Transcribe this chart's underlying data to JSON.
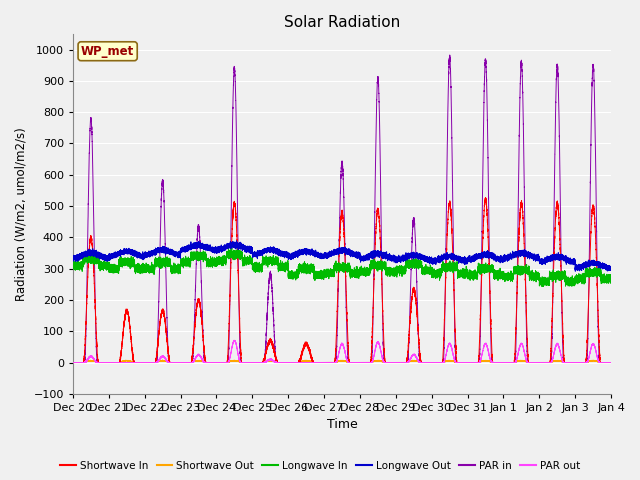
{
  "title": "Solar Radiation",
  "xlabel": "Time",
  "ylabel": "Radiation (W/m2, umol/m2/s)",
  "ylim": [
    -100,
    1050
  ],
  "yticks": [
    -100,
    0,
    100,
    200,
    300,
    400,
    500,
    600,
    700,
    800,
    900,
    1000
  ],
  "x_labels": [
    "Dec 20",
    "Dec 21",
    "Dec 22",
    "Dec 23",
    "Dec 24",
    "Dec 25",
    "Dec 26",
    "Dec 27",
    "Dec 28",
    "Dec 29",
    "Dec 30",
    "Dec 31",
    "Jan 1",
    "Jan 2",
    "Jan 3",
    "Jan 4"
  ],
  "annotation_text": "WP_met",
  "annotation_box_facecolor": "#FFFFCC",
  "annotation_box_edgecolor": "#8B6914",
  "background_color": "#F0F0F0",
  "grid_color": "white",
  "legend": [
    {
      "label": "Shortwave In",
      "color": "#FF0000"
    },
    {
      "label": "Shortwave Out",
      "color": "#FFA500"
    },
    {
      "label": "Longwave In",
      "color": "#00BB00"
    },
    {
      "label": "Longwave Out",
      "color": "#0000CC"
    },
    {
      "label": "PAR in",
      "color": "#8800AA"
    },
    {
      "label": "PAR out",
      "color": "#FF44FF"
    }
  ],
  "num_days": 15,
  "pts_per_day": 1440
}
